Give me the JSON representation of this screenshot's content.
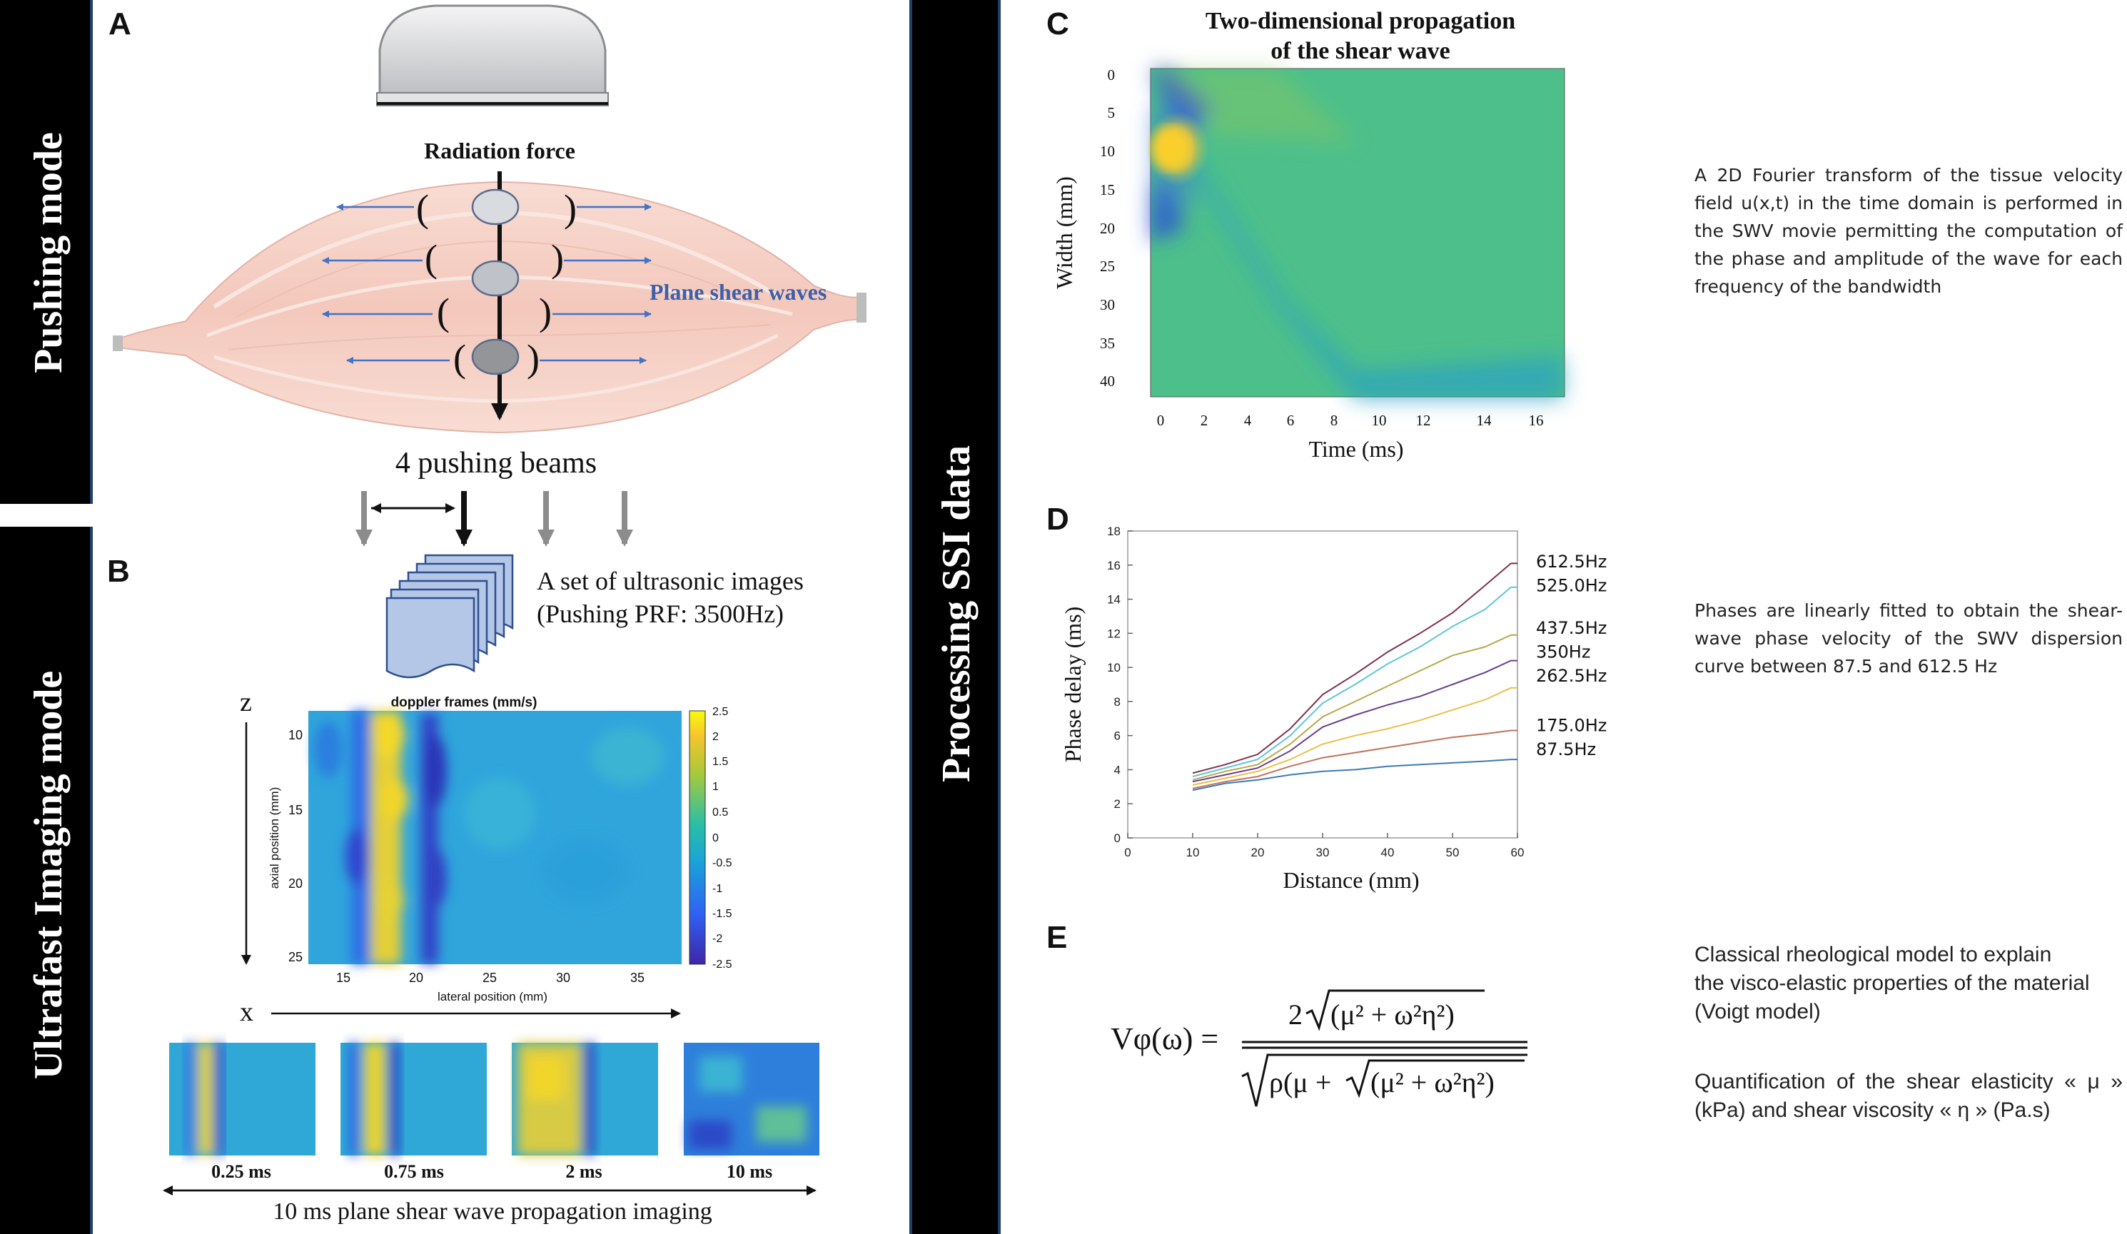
{
  "panels": {
    "a": "A",
    "b": "B",
    "c": "C",
    "d": "D",
    "e": "E"
  },
  "side_labels": {
    "pushing": "Pushing mode",
    "ultrafast": "Ultrafast Imaging mode",
    "processing": "Processing SSI data"
  },
  "panel_a": {
    "radiation_force": "Radiation force",
    "plane_shear_waves": "Plane shear waves",
    "pushing_beams": "4  pushing beams",
    "colors": {
      "muscle": "#f6d3c9",
      "arrow": "#4472c4",
      "label": "#3f5fa7"
    }
  },
  "panel_b": {
    "images_line1": "A set of ultrasonic images",
    "images_line2": "(Pushing PRF: 3500Hz)",
    "axis_z": "z",
    "axis_x": "x",
    "map_title": "doppler frames (mm/s)",
    "map_ylabel": "axial position (mm)",
    "map_xlabel": "lateral position (mm)",
    "y_ticks": [
      "10",
      "15",
      "20",
      "25"
    ],
    "x_ticks": [
      "15",
      "20",
      "25",
      "30",
      "35"
    ],
    "colorbar_ticks": [
      "2.5",
      "2",
      "1.5",
      "1",
      "0.5",
      "0",
      "-0.5",
      "-1",
      "-1.5",
      "-2",
      "-2.5"
    ],
    "frames": [
      "0.25 ms",
      "0.75 ms",
      "2 ms",
      "10 ms"
    ],
    "propagation": "10 ms plane shear wave propagation imaging"
  },
  "panel_c": {
    "title_line1": "Two-dimensional propagation",
    "title_line2": "of the shear wave",
    "ylabel": "Width (mm)",
    "xlabel": "Time (ms)",
    "y_ticks": [
      "0",
      "5",
      "10",
      "15",
      "20",
      "25",
      "30",
      "35",
      "40"
    ],
    "x_ticks": [
      "0",
      "2",
      "4",
      "6",
      "8",
      "10",
      "12",
      "14",
      "16"
    ],
    "description": "A 2D Fourier transform of the tissue velocity field u(x,t) in the time domain is performed in the SWV movie permitting the computation of the phase and amplitude of the wave for each frequency of the bandwidth"
  },
  "panel_d": {
    "description": "Phases are linearly fitted to obtain the shear-wave phase velocity of the SWV dispersion curve between 87.5 and 612.5 Hz"
  },
  "chart_data": {
    "type": "line",
    "title": "",
    "xlabel": "Distance (mm)",
    "ylabel": "Phase delay (ms)",
    "xlim": [
      0,
      60
    ],
    "ylim": [
      0,
      18
    ],
    "x_ticks": [
      0,
      10,
      20,
      30,
      40,
      50,
      60
    ],
    "y_ticks": [
      0,
      2,
      4,
      6,
      8,
      10,
      12,
      14,
      16,
      18
    ],
    "x": [
      10,
      15,
      20,
      25,
      30,
      35,
      40,
      45,
      50,
      55,
      59,
      60
    ],
    "series": [
      {
        "name": "612.5Hz",
        "color": "#7e2f4e",
        "values": [
          3.8,
          4.3,
          4.9,
          6.4,
          8.4,
          9.6,
          10.9,
          12.0,
          13.2,
          14.8,
          16.1,
          16.1
        ]
      },
      {
        "name": "525.0Hz",
        "color": "#5fc5d6",
        "values": [
          3.6,
          4.1,
          4.6,
          6.0,
          7.9,
          9.0,
          10.2,
          11.2,
          12.4,
          13.4,
          14.7,
          14.7
        ]
      },
      {
        "name": "437.5Hz",
        "color": "#b8a84a",
        "values": [
          3.4,
          3.9,
          4.3,
          5.5,
          7.1,
          8.0,
          8.9,
          9.8,
          10.7,
          11.2,
          11.9,
          11.9
        ]
      },
      {
        "name": "350Hz",
        "color": "#6a3e86",
        "values": [
          3.3,
          3.7,
          4.1,
          5.1,
          6.5,
          7.2,
          7.8,
          8.3,
          9.0,
          9.7,
          10.4,
          10.4
        ]
      },
      {
        "name": "262.5Hz",
        "color": "#e8c04a",
        "values": [
          3.1,
          3.5,
          3.9,
          4.6,
          5.5,
          6.0,
          6.4,
          6.9,
          7.5,
          8.1,
          8.8,
          8.8
        ]
      },
      {
        "name": "175.0Hz",
        "color": "#c0735a",
        "values": [
          2.9,
          3.3,
          3.6,
          4.2,
          4.7,
          5.0,
          5.3,
          5.6,
          5.9,
          6.1,
          6.3,
          6.3
        ]
      },
      {
        "name": "87.5Hz",
        "color": "#3c7ab5",
        "values": [
          2.8,
          3.2,
          3.4,
          3.7,
          3.9,
          4.0,
          4.2,
          4.3,
          4.4,
          4.5,
          4.6,
          4.6
        ]
      }
    ]
  },
  "panel_e": {
    "lhs": "Vφ(ω) =",
    "num_coef": "2",
    "num_rad": "(μ² + ω²η²)",
    "den_rho": "ρ(μ +",
    "den_rad": "(μ² + ω²η²)",
    "den_close": "",
    "desc1_line1": "Classical rheological model to explain",
    "desc1_line2": "the visco-elastic properties of the material",
    "desc1_line3": "(Voigt model)",
    "desc2_line1": "Quantification of the shear elasticity « μ »",
    "desc2_line2": "(kPa) and shear viscosity « η » (Pa.s)"
  }
}
